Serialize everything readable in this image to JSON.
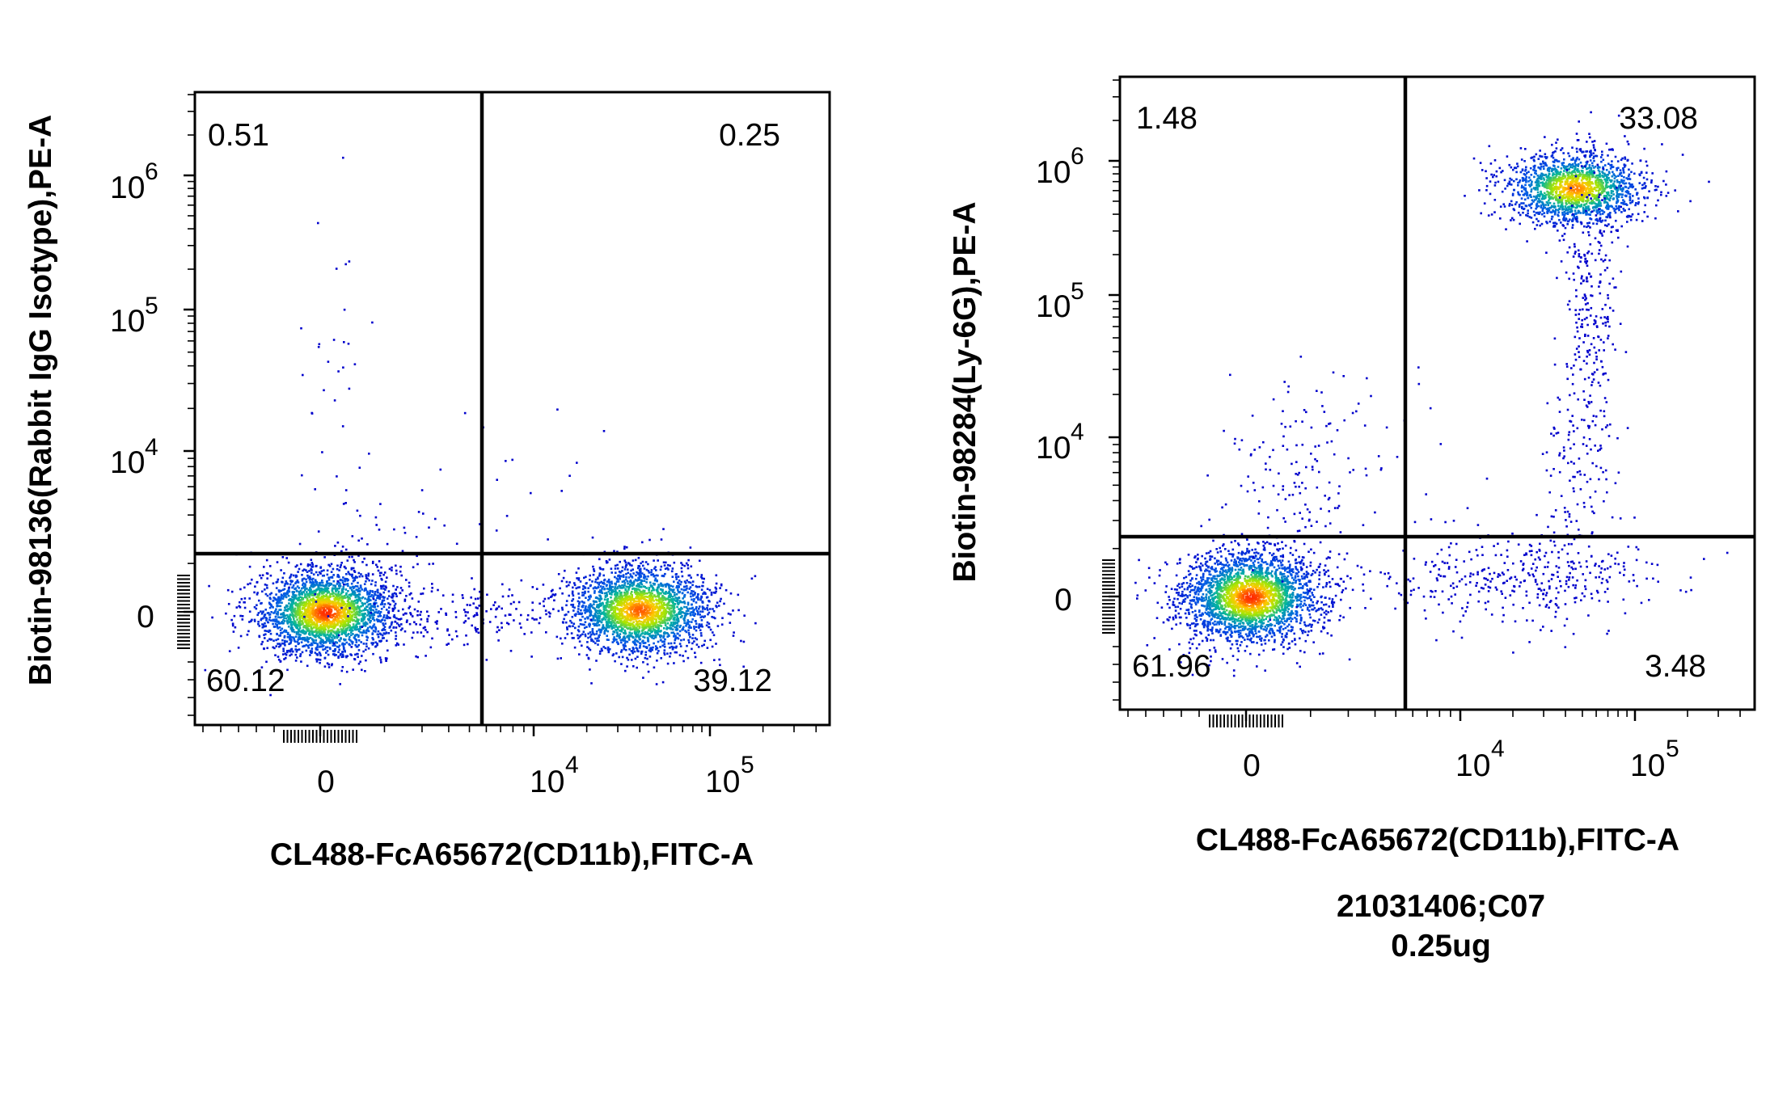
{
  "chart_data": [
    {
      "type": "scatter",
      "subtype": "flow-cytometry-density-dot-plot",
      "xlabel": "CL488-FcA65672(CD11b),FITC-A",
      "ylabel": "Biotin-98136(Rabbit IgG Isotype),PE-A",
      "x_scale": "biexponential",
      "y_scale": "biexponential",
      "x_ticks": [
        {
          "value": 0,
          "base": "0",
          "exp": ""
        },
        {
          "value": 10000,
          "base": "10",
          "exp": "4"
        },
        {
          "value": 100000,
          "base": "10",
          "exp": "5"
        }
      ],
      "y_ticks": [
        {
          "value": 0,
          "base": "0",
          "exp": ""
        },
        {
          "value": 10000,
          "base": "10",
          "exp": "4"
        },
        {
          "value": 100000,
          "base": "10",
          "exp": "5"
        },
        {
          "value": 1000000,
          "base": "10",
          "exp": "6"
        }
      ],
      "quadrant_percentages": {
        "upper_left": "0.51",
        "upper_right": "0.25",
        "lower_left": "60.12",
        "lower_right": "39.12"
      },
      "populations": [
        {
          "label": "CD11b- negative cluster",
          "x": 0,
          "y": 0,
          "quadrant": "lower_left"
        },
        {
          "label": "CD11b+ cluster",
          "x": 50000,
          "y": 0,
          "quadrant": "lower_right"
        }
      ],
      "grid": false,
      "legend": "none"
    },
    {
      "type": "scatter",
      "subtype": "flow-cytometry-density-dot-plot",
      "xlabel": "CL488-FcA65672(CD11b),FITC-A",
      "ylabel": "Biotin-98284(Ly-6G),PE-A",
      "x_scale": "biexponential",
      "y_scale": "biexponential",
      "x_ticks": [
        {
          "value": 0,
          "base": "0",
          "exp": ""
        },
        {
          "value": 10000,
          "base": "10",
          "exp": "4"
        },
        {
          "value": 100000,
          "base": "10",
          "exp": "5"
        }
      ],
      "y_ticks": [
        {
          "value": 0,
          "base": "0",
          "exp": ""
        },
        {
          "value": 10000,
          "base": "10",
          "exp": "4"
        },
        {
          "value": 100000,
          "base": "10",
          "exp": "5"
        },
        {
          "value": 1000000,
          "base": "10",
          "exp": "6"
        }
      ],
      "quadrant_percentages": {
        "upper_left": "1.48",
        "upper_right": "33.08",
        "lower_left": "61.96",
        "lower_right": "3.48"
      },
      "populations": [
        {
          "label": "double negative cluster",
          "x": 0,
          "y": 0,
          "quadrant": "lower_left"
        },
        {
          "label": "CD11b+ Ly-6G+ cluster",
          "x": 35000,
          "y": 700000,
          "quadrant": "upper_right"
        }
      ],
      "grid": false,
      "legend": "none",
      "caption_lines": [
        "21031406;C07",
        "0.25ug"
      ]
    }
  ],
  "colors": {
    "frame": "#000000",
    "density_low": "#0000cc",
    "density_mid": "#00b4a0",
    "density_high": "#ff2a00"
  }
}
